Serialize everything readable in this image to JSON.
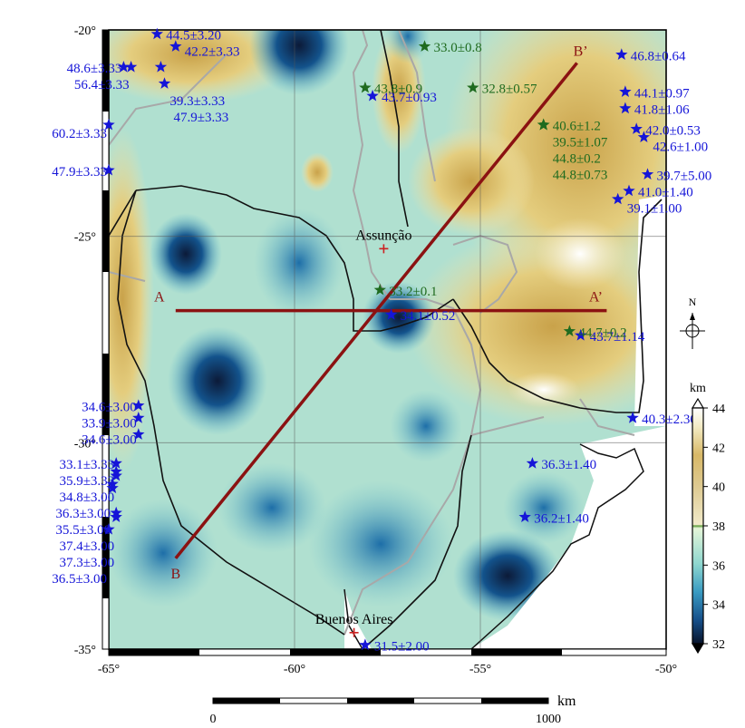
{
  "map": {
    "lon_range": [
      -65,
      -50
    ],
    "lat_range": [
      -35,
      -20
    ],
    "x_ticks": [
      {
        "lon": -65,
        "label": "-65°"
      },
      {
        "lon": -60,
        "label": "-60°"
      },
      {
        "lon": -55,
        "label": "-55°"
      },
      {
        "lon": -50,
        "label": "-50°"
      }
    ],
    "y_ticks": [
      {
        "lat": -20,
        "label": "-20°"
      },
      {
        "lat": -25,
        "label": "-25°"
      },
      {
        "lat": -30,
        "label": "-30°"
      },
      {
        "lat": -35,
        "label": "-35°"
      }
    ],
    "cities": [
      {
        "name": "Assunção",
        "lon": -57.6,
        "lat": -25.3
      },
      {
        "name": "Buenos Aires",
        "lon": -58.4,
        "lat": -34.6
      }
    ],
    "profiles": [
      {
        "start_label": "A",
        "end_label": "A’",
        "start": [
          -63.2,
          -26.8
        ],
        "end": [
          -51.6,
          -26.8
        ]
      },
      {
        "start_label": "B",
        "end_label": "B’",
        "start": [
          -63.2,
          -32.8
        ],
        "end": [
          -52.4,
          -20.8
        ]
      }
    ],
    "north_arrow_label": "N",
    "stations_blue": [
      {
        "text": "44.5±3.20",
        "lon": -63.7,
        "lat": -20.1
      },
      {
        "text": "42.2±3.33",
        "lon": -63.2,
        "lat": -20.4
      },
      {
        "text": "48.6±3.33",
        "lon": -64.6,
        "lat": -20.9
      },
      {
        "text": "56.4±3.33",
        "lon": -64.4,
        "lat": -20.9
      },
      {
        "text": "39.3±3.33",
        "lon": -63.6,
        "lat": -20.9
      },
      {
        "text": "47.9±3.33",
        "lon": -63.5,
        "lat": -21.3
      },
      {
        "text": "60.2±3.33",
        "lon": -65.0,
        "lat": -22.3
      },
      {
        "text": "47.9±3.33",
        "lon": -65.0,
        "lat": -23.4
      },
      {
        "text": "43.7±0.93",
        "lon": -57.9,
        "lat": -21.6
      },
      {
        "text": "46.8±0.64",
        "lon": -51.2,
        "lat": -20.6
      },
      {
        "text": "44.1±0.97",
        "lon": -51.1,
        "lat": -21.5
      },
      {
        "text": "41.8±1.06",
        "lon": -51.1,
        "lat": -21.9
      },
      {
        "text": "42.0±0.53",
        "lon": -50.8,
        "lat": -22.4
      },
      {
        "text": "42.6±1.00",
        "lon": -50.6,
        "lat": -22.6
      },
      {
        "text": "39.7±5.00",
        "lon": -50.5,
        "lat": -23.5
      },
      {
        "text": "41.0±1.40",
        "lon": -51.0,
        "lat": -23.9
      },
      {
        "text": "39.1±1.00",
        "lon": -51.3,
        "lat": -24.1
      },
      {
        "text": "34.1±0.52",
        "lon": -57.4,
        "lat": -26.9
      },
      {
        "text": "43.7±1.14",
        "lon": -52.3,
        "lat": -27.4
      },
      {
        "text": "34.6±3.00",
        "lon": -64.2,
        "lat": -29.1
      },
      {
        "text": "33.9±3.00",
        "lon": -64.2,
        "lat": -29.4
      },
      {
        "text": "34.6±3.00",
        "lon": -64.2,
        "lat": -29.8
      },
      {
        "text": "33.1±3.33",
        "lon": -64.8,
        "lat": -30.5
      },
      {
        "text": "35.9±3.33",
        "lon": -64.8,
        "lat": -30.8
      },
      {
        "text": "34.8±3.00",
        "lon": -64.8,
        "lat": -30.7
      },
      {
        "text": "36.3±3.00",
        "lon": -64.9,
        "lat": -31.1
      },
      {
        "text": "35.5±3.00",
        "lon": -64.9,
        "lat": -31.0
      },
      {
        "text": "37.4±3.00",
        "lon": -64.8,
        "lat": -31.7
      },
      {
        "text": "37.3±3.00",
        "lon": -64.8,
        "lat": -31.8
      },
      {
        "text": "36.5±3.00",
        "lon": -65.0,
        "lat": -32.1
      },
      {
        "text": "40.3±2.30",
        "lon": -50.9,
        "lat": -29.4
      },
      {
        "text": "36.3±1.40",
        "lon": -53.6,
        "lat": -30.5
      },
      {
        "text": "36.2±1.40",
        "lon": -53.8,
        "lat": -31.8
      },
      {
        "text": "31.5±2.00",
        "lon": -58.1,
        "lat": -34.9
      }
    ],
    "stations_green": [
      {
        "text": "33.0±0.8",
        "lon": -56.5,
        "lat": -20.4
      },
      {
        "text": "43.8±0.9",
        "lon": -58.1,
        "lat": -21.4
      },
      {
        "text": "32.8±0.57",
        "lon": -55.2,
        "lat": -21.4
      },
      {
        "text": "40.6±1.2",
        "lon": -53.3,
        "lat": -22.3
      },
      {
        "text": "39.5±1.07",
        "lon": -53.3,
        "lat": -22.3
      },
      {
        "text": "44.8±0.2",
        "lon": -53.3,
        "lat": -22.3
      },
      {
        "text": "44.8±0.73",
        "lon": -53.3,
        "lat": -22.3
      },
      {
        "text": "33.2±0.1",
        "lon": -57.7,
        "lat": -26.3
      },
      {
        "text": "44.7±0.2",
        "lon": -52.6,
        "lat": -27.3
      }
    ],
    "colors": {
      "blue_star": "#1515d8",
      "green_star": "#1f6b1f",
      "profile_line": "#8b1212",
      "border": "#111111",
      "river": "#a8a8a8"
    }
  },
  "colorbar": {
    "unit": "km",
    "min": 32,
    "max": 44,
    "ticks": [
      "44",
      "42",
      "40",
      "38",
      "36",
      "34",
      "32"
    ]
  },
  "scalebar": {
    "unit": "km",
    "left_label": "0",
    "right_label": "1000"
  }
}
